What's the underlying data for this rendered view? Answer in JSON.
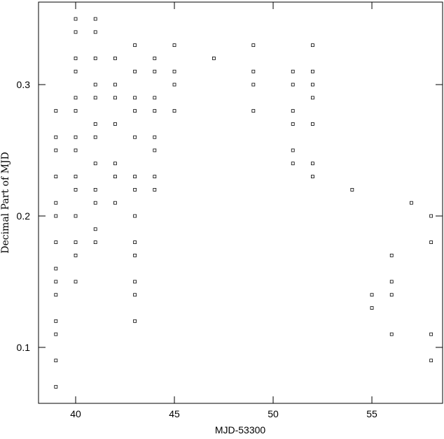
{
  "chart_data": {
    "type": "scatter",
    "xlabel": "MJD-53300",
    "ylabel": "Decimal Part  of  MJD",
    "xlim": [
      38.12,
      58.58
    ],
    "ylim": [
      0.0574,
      0.3628
    ],
    "xticks": [
      40,
      45,
      50,
      55
    ],
    "yticks": [
      0.1,
      0.2,
      0.3
    ],
    "color": "#000000",
    "marker": "square-open",
    "x": [
      39,
      39,
      39,
      39,
      39,
      39,
      39,
      39,
      39,
      39,
      39,
      39,
      39,
      39,
      40,
      40,
      40,
      40,
      40,
      40,
      40,
      40,
      40,
      40,
      40,
      40,
      40,
      40,
      41,
      41,
      41,
      41,
      41,
      41,
      41,
      41,
      41,
      41,
      41,
      41,
      42,
      42,
      42,
      42,
      42,
      42,
      42,
      43,
      43,
      43,
      43,
      43,
      43,
      43,
      43,
      43,
      43,
      43,
      43,
      43,
      44,
      44,
      44,
      44,
      44,
      44,
      44,
      44,
      45,
      45,
      45,
      45,
      47,
      49,
      49,
      49,
      49,
      51,
      51,
      51,
      51,
      51,
      51,
      52,
      52,
      52,
      52,
      52,
      52,
      52,
      54,
      55,
      55,
      56,
      56,
      56,
      56,
      57,
      58,
      58,
      58,
      58
    ],
    "y": [
      0.28,
      0.26,
      0.25,
      0.23,
      0.21,
      0.2,
      0.18,
      0.16,
      0.15,
      0.14,
      0.12,
      0.11,
      0.09,
      0.07,
      0.35,
      0.34,
      0.32,
      0.31,
      0.29,
      0.28,
      0.26,
      0.25,
      0.23,
      0.22,
      0.2,
      0.18,
      0.17,
      0.15,
      0.35,
      0.34,
      0.32,
      0.3,
      0.29,
      0.27,
      0.26,
      0.24,
      0.22,
      0.21,
      0.19,
      0.18,
      0.32,
      0.3,
      0.29,
      0.27,
      0.24,
      0.23,
      0.21,
      0.33,
      0.31,
      0.29,
      0.28,
      0.26,
      0.23,
      0.22,
      0.2,
      0.18,
      0.17,
      0.15,
      0.14,
      0.12,
      0.32,
      0.31,
      0.29,
      0.28,
      0.26,
      0.25,
      0.23,
      0.22,
      0.33,
      0.31,
      0.3,
      0.28,
      0.32,
      0.33,
      0.31,
      0.3,
      0.28,
      0.31,
      0.3,
      0.28,
      0.27,
      0.25,
      0.24,
      0.33,
      0.31,
      0.3,
      0.29,
      0.27,
      0.24,
      0.23,
      0.22,
      0.14,
      0.13,
      0.17,
      0.15,
      0.14,
      0.11,
      0.21,
      0.2,
      0.18,
      0.11,
      0.09
    ]
  }
}
